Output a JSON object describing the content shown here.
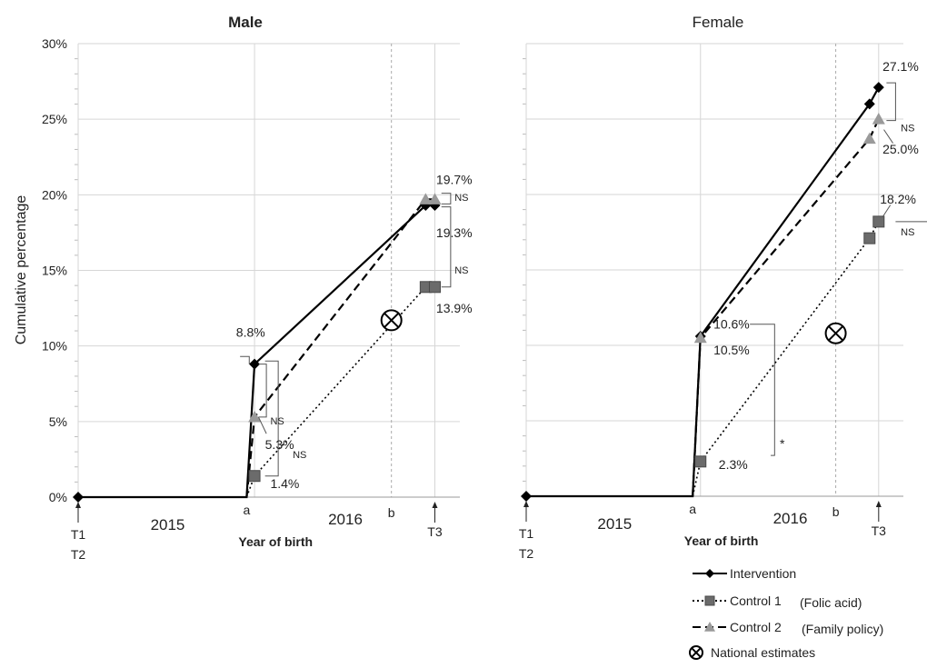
{
  "chart_data": {
    "type": "line",
    "y_axis": {
      "label": "Cumulative percentage",
      "range": [
        0,
        30
      ],
      "ticks": [
        "0%",
        "5%",
        "10%",
        "15%",
        "20%",
        "25%",
        "30%"
      ]
    },
    "x_axis": {
      "label": "Year of birth",
      "year_labels": [
        "2015",
        "2016"
      ],
      "markers": [
        "a",
        "b"
      ],
      "time_points": {
        "left_top": "T1",
        "left_bottom": "T2",
        "right": "T3"
      }
    },
    "legend": {
      "position": "bottom-right",
      "entries": [
        {
          "key": "intervention",
          "name": "Intervention",
          "note": ""
        },
        {
          "key": "control1",
          "name": "Control 1",
          "note": "(Folic acid)"
        },
        {
          "key": "control2",
          "name": "Control 2",
          "note": "(Family policy)"
        },
        {
          "key": "national",
          "name": "National estimates",
          "note": ""
        }
      ]
    },
    "colors": {
      "line": "#000000",
      "square": "#6b6b6b",
      "triangle": "#9a9a9a",
      "grid": "#d6d6d6"
    },
    "panels": [
      {
        "title": "Male",
        "bold_title": true,
        "series": {
          "intervention": {
            "x": [
              0,
              1.28,
              1.34,
              2.64,
              2.71
            ],
            "y": [
              0,
              0,
              8.8,
              19.3,
              19.3
            ]
          },
          "control1": {
            "x": [
              1.28,
              1.34,
              2.64,
              2.71
            ],
            "y": [
              0,
              1.4,
              13.9,
              13.9
            ]
          },
          "control2": {
            "x": [
              1.28,
              1.34,
              2.64,
              2.71
            ],
            "y": [
              0,
              5.3,
              19.7,
              19.7
            ]
          }
        },
        "national_estimate": {
          "x": 2.38,
          "y": 11.7
        },
        "labels": [
          {
            "text": "8.8%",
            "x": 1.2,
            "y": 10.6
          },
          {
            "text": "5.3%",
            "x": 1.42,
            "y": 3.2
          },
          {
            "text": "1.4%",
            "x": 1.46,
            "y": 0.6
          },
          {
            "text": "19.7%",
            "x": 2.72,
            "y": 20.7
          },
          {
            "text": "19.3%",
            "x": 2.72,
            "y": 17.2
          },
          {
            "text": "13.9%",
            "x": 2.72,
            "y": 12.2
          }
        ],
        "significance": [
          {
            "text": "NS",
            "x": 1.46,
            "y": 4.8
          },
          {
            "text": "NS",
            "x": 1.63,
            "y": 2.6
          },
          {
            "text": "NS",
            "x": 2.86,
            "y": 19.6
          },
          {
            "text": "NS",
            "x": 2.86,
            "y": 14.8
          }
        ]
      },
      {
        "title": "Female",
        "bold_title": false,
        "series": {
          "intervention": {
            "x": [
              0,
              1.28,
              1.34,
              2.64,
              2.71
            ],
            "y": [
              0,
              0,
              10.6,
              26,
              27.1
            ]
          },
          "control1": {
            "x": [
              1.28,
              1.34,
              2.64,
              2.71
            ],
            "y": [
              0,
              2.3,
              17.1,
              18.2
            ]
          },
          "control2": {
            "x": [
              1.28,
              1.34,
              2.64,
              2.71
            ],
            "y": [
              0,
              10.5,
              23.7,
              25.0
            ]
          }
        },
        "national_estimate": {
          "x": 2.38,
          "y": 10.8
        },
        "labels": [
          {
            "text": "10.6%",
            "x": 1.44,
            "y": 11.1
          },
          {
            "text": "10.5%",
            "x": 1.44,
            "y": 9.4
          },
          {
            "text": "2.3%",
            "x": 1.48,
            "y": 1.8
          },
          {
            "text": "27.1%",
            "x": 2.74,
            "y": 28.2
          },
          {
            "text": "25.0%",
            "x": 2.74,
            "y": 22.7
          },
          {
            "text": "18.2%",
            "x": 2.72,
            "y": 19.4
          }
        ],
        "significance": [
          {
            "text": "NS",
            "x": 2.88,
            "y": 24.2
          },
          {
            "text": "NS",
            "x": 2.88,
            "y": 17.3
          },
          {
            "text": "*",
            "x": 1.95,
            "y": 3.2
          }
        ]
      }
    ]
  }
}
